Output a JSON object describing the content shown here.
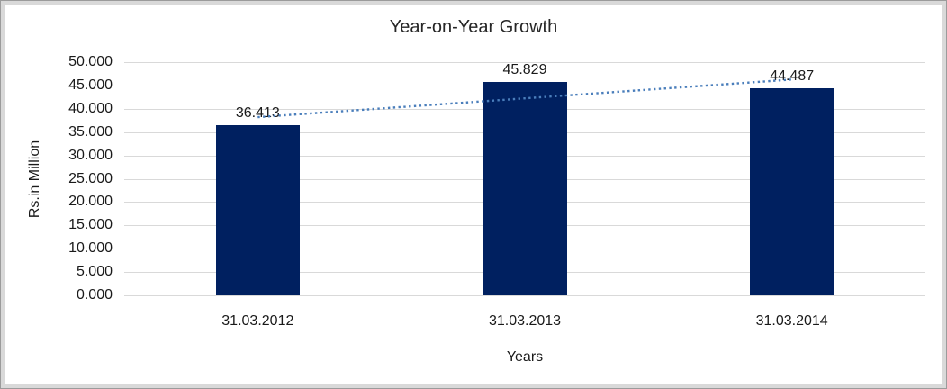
{
  "frame": {
    "border_color": "#9b9b9b",
    "mat_color": "#d9d9d9",
    "chart_background": "#ffffff"
  },
  "chart_data": {
    "type": "bar",
    "title": "Year-on-Year Growth",
    "xlabel": "Years",
    "ylabel": "Rs.in Million",
    "categories": [
      "31.03.2012",
      "31.03.2013",
      "31.03.2014"
    ],
    "values": [
      36.413,
      45.829,
      44.487
    ],
    "data_labels": [
      "36.413",
      "45.829",
      "44.487"
    ],
    "ylim": [
      0,
      50
    ],
    "ytick_step": 5,
    "ytick_labels": [
      "0.000",
      "5.000",
      "10.000",
      "15.000",
      "20.000",
      "25.000",
      "30.000",
      "35.000",
      "40.000",
      "45.000",
      "50.000"
    ],
    "grid": true,
    "legend": "none",
    "bar_color": "#002060",
    "gridline_color": "#d9d9d9",
    "text_color": "#1a1a1a",
    "trendline": {
      "type": "linear",
      "style": "dotted",
      "color": "#4a7ebb",
      "values": [
        38.2,
        42.24,
        46.28
      ]
    }
  }
}
